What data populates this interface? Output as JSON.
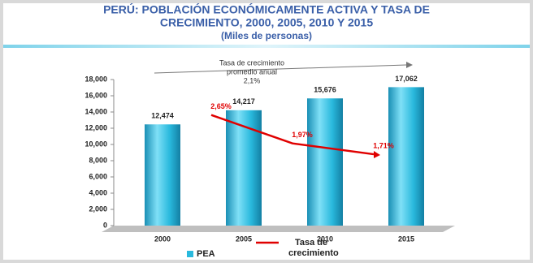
{
  "chart_data": {
    "type": "bar",
    "title": [
      "PERÚ: POBLACIÓN ECONÓMICAMENTE ACTIVA Y TASA DE",
      "CRECIMIENTO, 2000, 2005, 2010 Y 2015"
    ],
    "subtitle": "(Miles de personas)",
    "annotation": [
      "Tasa de crecimiento",
      "promedio anual",
      "2,1%"
    ],
    "categories": [
      "2000",
      "2005",
      "2010",
      "2015"
    ],
    "series": [
      {
        "name": "PEA",
        "type": "bar",
        "color": "#29b9dd",
        "values": [
          12474,
          14217,
          15676,
          17062
        ],
        "value_labels": [
          "12,474",
          "14,217",
          "15,676",
          "17,062"
        ]
      },
      {
        "name": "Tasa de crecimiento",
        "type": "line",
        "axis": "y2",
        "color": "#e00000",
        "values": [
          null,
          2.65,
          1.97,
          1.71
        ],
        "value_labels": [
          null,
          "2,65%",
          "1,97%",
          "1,71%"
        ]
      }
    ],
    "ylim": [
      0,
      18000
    ],
    "yticks": [
      0,
      {
        "value": 2000,
        "label": "2,000"
      },
      {
        "value": 4000,
        "label": "4,000"
      },
      {
        "value": 6000,
        "label": "6,000"
      },
      {
        "value": 8000,
        "label": "8,000"
      },
      {
        "value": 10000,
        "label": "10,000"
      },
      {
        "value": 12000,
        "label": "12,000"
      },
      {
        "value": 14000,
        "label": "14,000"
      },
      {
        "value": 16000,
        "label": "16,000"
      },
      {
        "value": 18000,
        "label": "18,000"
      }
    ],
    "y2lim": [
      0,
      3.5
    ],
    "legend": "bottom"
  }
}
